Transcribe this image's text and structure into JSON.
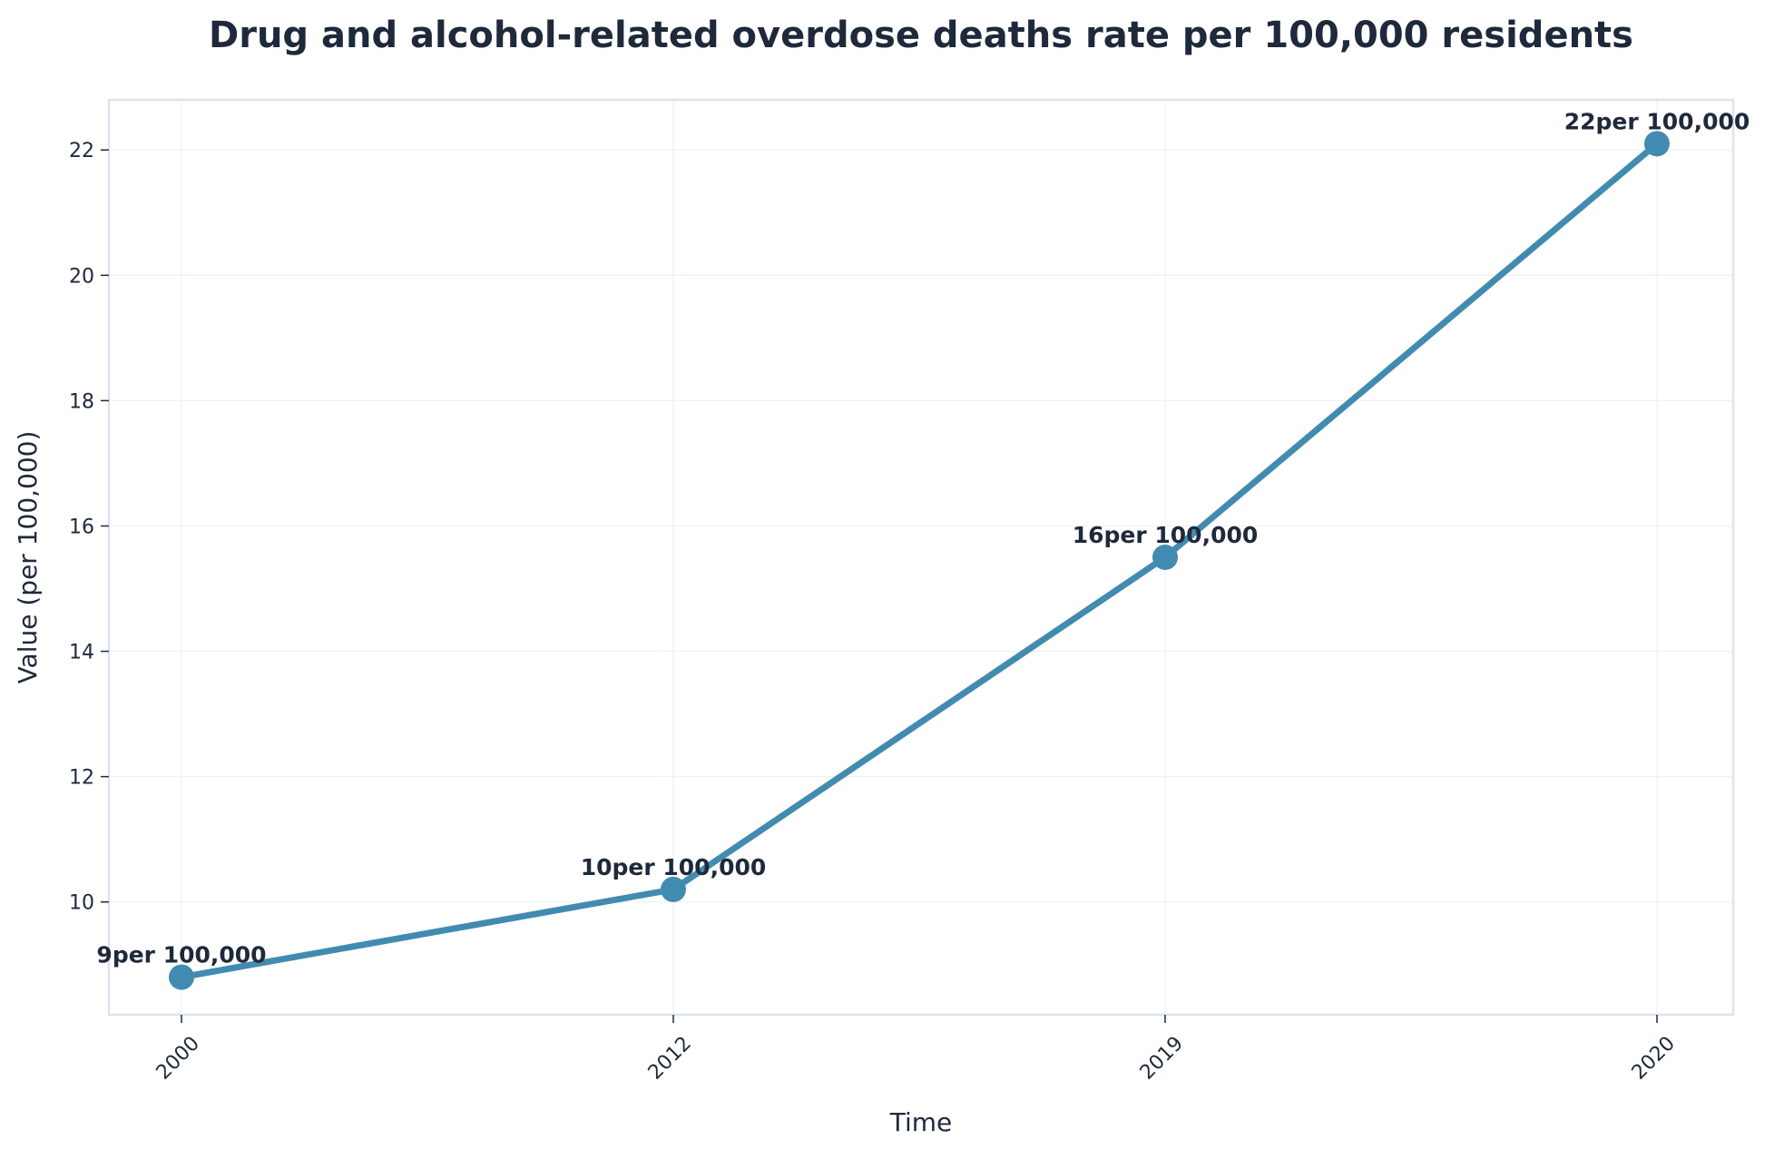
{
  "chart_data": {
    "type": "line",
    "title": "Drug and alcohol-related overdose deaths rate per 100,000 residents",
    "xlabel": "Time",
    "ylabel": "Value (per 100,000)",
    "categories": [
      "2000",
      "2012",
      "2019",
      "2020"
    ],
    "series": [
      {
        "values": [
          8.8,
          10.2,
          15.5,
          22.1
        ],
        "data_labels": [
          "9per 100,000",
          "10per 100,000",
          "16per 100,000",
          "22per 100,000"
        ],
        "color": "#428bb0"
      }
    ],
    "ylim": [
      8.2,
      22.8
    ],
    "yticks": [
      10,
      12,
      14,
      16,
      18,
      20,
      22
    ],
    "grid": true,
    "x_tick_rotation": "45 degrees"
  }
}
